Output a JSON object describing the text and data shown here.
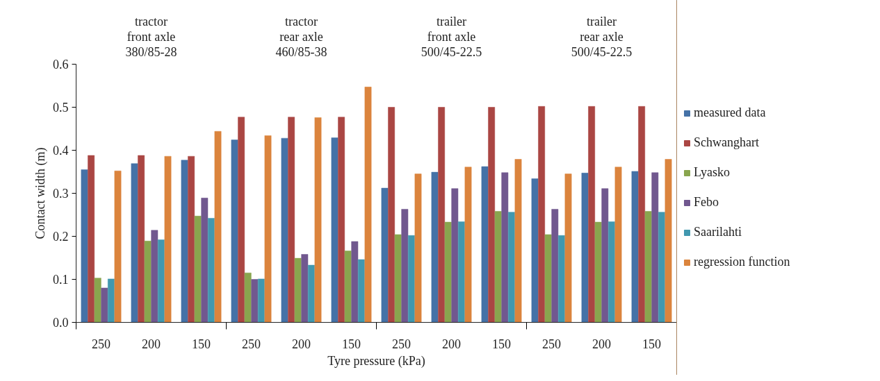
{
  "chart_data": {
    "type": "bar",
    "categories": [
      "250",
      "200",
      "150",
      "250",
      "200",
      "150",
      "250",
      "200",
      "150",
      "250",
      "200",
      "150"
    ],
    "xlabel": "Tyre pressure (kPa)",
    "ylabel": "Contact width (m)",
    "annotations": [
      "tractor\nfront axle\n380/85-28",
      "tractor\nrear axle\n460/85-38",
      "trailer\nfront axle\n500/45-22.5",
      "trailer\nrear axle\n500/45-22.5"
    ],
    "ylim": [
      0,
      0.6
    ],
    "yticks": [
      {
        "value": 0,
        "label": "0.0"
      },
      0.1,
      0.2,
      0.3,
      0.4,
      0.5,
      0.6
    ],
    "grid": false,
    "legend": "right",
    "series": [
      {
        "name": "measured data",
        "color": "#4572a7",
        "values": [
          0.355,
          0.369,
          0.377,
          0.424,
          0.428,
          0.429,
          0.312,
          0.349,
          0.362,
          0.334,
          0.347,
          0.351
        ]
      },
      {
        "name": "Schwanghart",
        "color": "#aa4643",
        "values": [
          0.388,
          0.388,
          0.386,
          0.477,
          0.477,
          0.477,
          0.5,
          0.5,
          0.5,
          0.502,
          0.502,
          0.502
        ]
      },
      {
        "name": "Lyasko",
        "color": "#89a54e",
        "values": [
          0.103,
          0.189,
          0.247,
          0.115,
          0.149,
          0.166,
          0.204,
          0.233,
          0.258,
          0.204,
          0.233,
          0.258
        ]
      },
      {
        "name": "Febo",
        "color": "#71588f",
        "values": [
          0.08,
          0.214,
          0.289,
          0.1,
          0.158,
          0.188,
          0.263,
          0.311,
          0.348,
          0.263,
          0.311,
          0.348
        ]
      },
      {
        "name": "Saarilahti",
        "color": "#4198af",
        "values": [
          0.101,
          0.192,
          0.242,
          0.101,
          0.133,
          0.146,
          0.202,
          0.234,
          0.256,
          0.202,
          0.234,
          0.256
        ]
      },
      {
        "name": "regression function",
        "color": "#db843d",
        "values": [
          0.352,
          0.386,
          0.444,
          0.434,
          0.476,
          0.547,
          0.345,
          0.361,
          0.379,
          0.345,
          0.361,
          0.379
        ]
      }
    ]
  }
}
